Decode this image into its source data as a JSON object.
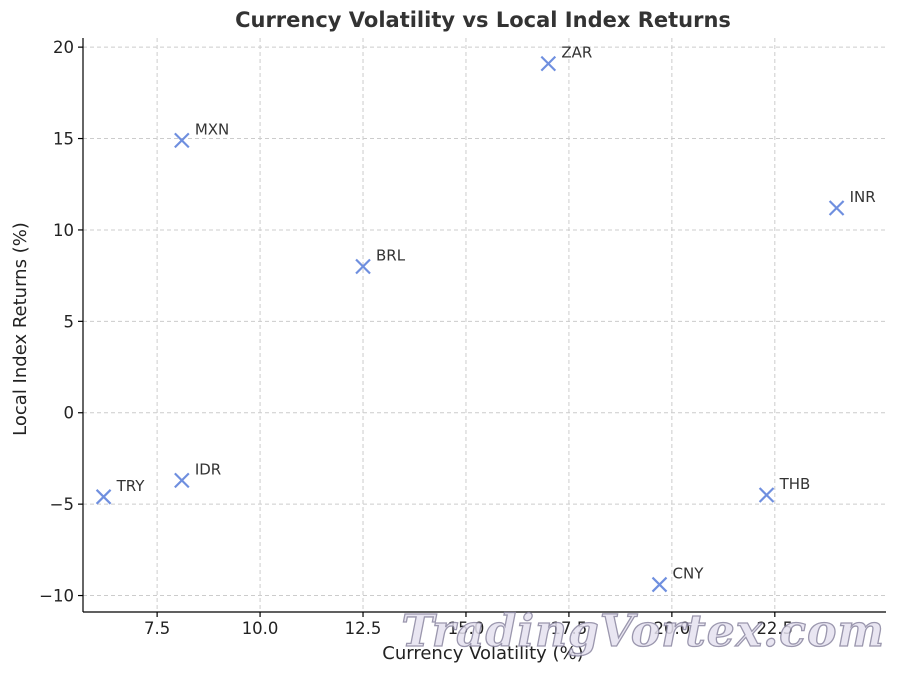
{
  "colors": {
    "marker": "#6f8fdf",
    "grid": "#cccccc",
    "text": "#333333"
  },
  "watermark": "TradingVortex.com",
  "chart_data": {
    "type": "scatter",
    "title": "Currency Volatility vs Local Index Returns",
    "xlabel": "Currency Volatility (%)",
    "ylabel": "Local Index Returns (%)",
    "xlim": [
      5.7,
      25.2
    ],
    "ylim": [
      -10.9,
      20.5
    ],
    "xticks": [
      7.5,
      10.0,
      12.5,
      15.0,
      17.5,
      20.0,
      22.5
    ],
    "xtick_labels": [
      "7.5",
      "10.0",
      "12.5",
      "15.0",
      "17.5",
      "20.0",
      "22.5"
    ],
    "yticks": [
      -10,
      -5,
      0,
      5,
      10,
      15,
      20
    ],
    "ytick_labels": [
      "−10",
      "−5",
      "0",
      "5",
      "10",
      "15",
      "20"
    ],
    "grid": true,
    "marker": "x",
    "points": [
      {
        "label": "MXN",
        "x": 8.1,
        "y": 14.9
      },
      {
        "label": "ZAR",
        "x": 17.0,
        "y": 19.1
      },
      {
        "label": "INR",
        "x": 24.0,
        "y": 11.2
      },
      {
        "label": "BRL",
        "x": 12.5,
        "y": 8.0
      },
      {
        "label": "TRY",
        "x": 6.2,
        "y": -4.6
      },
      {
        "label": "IDR",
        "x": 8.1,
        "y": -3.7
      },
      {
        "label": "THB",
        "x": 22.3,
        "y": -4.5
      },
      {
        "label": "CNY",
        "x": 19.7,
        "y": -9.4
      }
    ]
  }
}
